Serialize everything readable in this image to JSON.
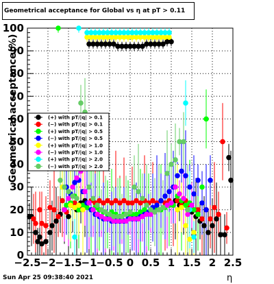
{
  "title_text": "Geometrical acceptance for Global vs  η at pT > 0.11",
  "footer_date": "Sun Apr 25 09:38:40 2021",
  "chart_data": {
    "type": "scatter",
    "title": "Geometrical acceptance for Global vs  η at pT > 0.11",
    "xlabel": "η",
    "ylabel": "Geometrical acceptance(%)",
    "xlim": [
      -2.5,
      2.5
    ],
    "ylim": [
      0,
      100
    ],
    "grid": true,
    "legend_position": "middle-left",
    "x_tick_labels": [
      "−2.5",
      "−2",
      "−1.5",
      "−1",
      "−0.5",
      "0",
      "0.5",
      "1",
      "1.5",
      "2",
      "2.5"
    ],
    "x_tick_values": [
      -2.5,
      -2,
      -1.5,
      -1,
      -0.5,
      0,
      0.5,
      1,
      1.5,
      2,
      2.5
    ],
    "y_tick_labels": [
      "0",
      "10",
      "20",
      "30",
      "40",
      "50",
      "60",
      "70",
      "80",
      "90",
      "100"
    ],
    "y_tick_values": [
      0,
      10,
      20,
      30,
      40,
      50,
      60,
      70,
      80,
      90,
      100
    ],
    "series": [
      {
        "name": "(+) with pT/|q| > 0.1",
        "color": "#000000",
        "points": [
          [
            -2.45,
            17
          ],
          [
            -2.4,
            17
          ],
          [
            -2.3,
            10
          ],
          [
            -2.25,
            6
          ],
          [
            -2.2,
            8
          ],
          [
            -2.15,
            5
          ],
          [
            -2.05,
            6
          ],
          [
            -1.95,
            10
          ],
          [
            -1.9,
            13
          ],
          [
            -1.8,
            15
          ],
          [
            -1.7,
            18
          ],
          [
            -1.6,
            20
          ],
          [
            -1.5,
            17
          ],
          [
            -1.4,
            22
          ],
          [
            -1.3,
            20
          ],
          [
            -1.2,
            23
          ],
          [
            -1.1,
            24
          ],
          [
            -1.0,
            93
          ],
          [
            -0.9,
            93
          ],
          [
            -0.8,
            93
          ],
          [
            -0.7,
            93
          ],
          [
            -0.6,
            93
          ],
          [
            -0.5,
            93
          ],
          [
            -0.4,
            93
          ],
          [
            -0.3,
            92
          ],
          [
            -0.2,
            92
          ],
          [
            -0.1,
            92
          ],
          [
            0.0,
            92
          ],
          [
            0.1,
            92
          ],
          [
            0.2,
            92
          ],
          [
            0.3,
            92
          ],
          [
            0.4,
            93
          ],
          [
            0.5,
            93
          ],
          [
            0.6,
            93
          ],
          [
            0.7,
            93
          ],
          [
            0.8,
            93
          ],
          [
            0.9,
            94
          ],
          [
            1.0,
            94
          ],
          [
            1.1,
            24
          ],
          [
            1.2,
            22
          ],
          [
            1.3,
            23
          ],
          [
            1.4,
            20
          ],
          [
            1.5,
            19
          ],
          [
            1.6,
            17
          ],
          [
            1.7,
            15
          ],
          [
            1.8,
            13
          ],
          [
            1.9,
            10
          ],
          [
            2.0,
            13
          ],
          [
            2.1,
            16
          ],
          [
            2.2,
            9
          ],
          [
            2.3,
            9
          ],
          [
            2.4,
            43
          ],
          [
            2.45,
            33
          ]
        ]
      },
      {
        "name": "(−) with pT/|q| > 0.1",
        "color": "#ff0000",
        "points": [
          [
            -2.35,
            16
          ],
          [
            -2.3,
            14
          ],
          [
            -2.2,
            20
          ],
          [
            -2.15,
            14
          ],
          [
            -2.05,
            13
          ],
          [
            -1.95,
            21
          ],
          [
            -1.85,
            20
          ],
          [
            -1.75,
            17
          ],
          [
            -1.65,
            24
          ],
          [
            -1.55,
            19
          ],
          [
            -1.45,
            22
          ],
          [
            -1.35,
            23
          ],
          [
            -1.25,
            21
          ],
          [
            -1.15,
            22
          ],
          [
            -1.05,
            23
          ],
          [
            -0.95,
            24
          ],
          [
            -0.85,
            23
          ],
          [
            -0.75,
            24
          ],
          [
            -0.65,
            23
          ],
          [
            -0.55,
            24
          ],
          [
            -0.45,
            23
          ],
          [
            -0.35,
            24
          ],
          [
            -0.25,
            23
          ],
          [
            -0.15,
            24
          ],
          [
            -0.05,
            23
          ],
          [
            0.05,
            23
          ],
          [
            0.15,
            24
          ],
          [
            0.25,
            23
          ],
          [
            0.35,
            24
          ],
          [
            0.45,
            23
          ],
          [
            0.55,
            24
          ],
          [
            0.65,
            23
          ],
          [
            0.75,
            24
          ],
          [
            0.85,
            23
          ],
          [
            0.95,
            24
          ],
          [
            1.05,
            22
          ],
          [
            1.15,
            24
          ],
          [
            1.25,
            22
          ],
          [
            1.35,
            24
          ],
          [
            1.45,
            21
          ],
          [
            1.55,
            20
          ],
          [
            1.65,
            20
          ],
          [
            1.75,
            16
          ],
          [
            1.85,
            20
          ],
          [
            1.95,
            16
          ],
          [
            2.05,
            21
          ],
          [
            2.15,
            18
          ],
          [
            2.25,
            50
          ],
          [
            2.35,
            12
          ]
        ]
      },
      {
        "name": "(+) with pT/|q| > 0.5",
        "color": "#00ff00",
        "points": [
          [
            -1.75,
            100
          ],
          [
            -1.65,
            30
          ],
          [
            -1.55,
            22
          ],
          [
            -1.45,
            23
          ],
          [
            -1.35,
            26
          ],
          [
            -1.25,
            20
          ],
          [
            -1.15,
            22
          ],
          [
            -1.05,
            21
          ],
          [
            -0.95,
            20
          ],
          [
            -0.85,
            21
          ],
          [
            -0.75,
            20
          ],
          [
            -0.65,
            19
          ],
          [
            -0.55,
            18
          ],
          [
            -0.45,
            19
          ],
          [
            -0.35,
            18
          ],
          [
            -0.25,
            17
          ],
          [
            -0.15,
            18
          ],
          [
            -0.05,
            17
          ],
          [
            0.05,
            18
          ],
          [
            0.15,
            18
          ],
          [
            0.25,
            19
          ],
          [
            0.35,
            20
          ],
          [
            0.45,
            19
          ],
          [
            0.55,
            20
          ],
          [
            0.65,
            21
          ],
          [
            0.75,
            20
          ],
          [
            0.85,
            21
          ],
          [
            0.95,
            22
          ],
          [
            1.05,
            22
          ],
          [
            1.15,
            26
          ],
          [
            1.25,
            24
          ],
          [
            1.35,
            22
          ],
          [
            1.45,
            23
          ],
          [
            1.55,
            20
          ],
          [
            1.65,
            18
          ],
          [
            1.75,
            30
          ],
          [
            1.85,
            60
          ]
        ]
      },
      {
        "name": "(−) with pT/|q| > 0.5",
        "color": "#0000ff",
        "points": [
          [
            -1.55,
            30
          ],
          [
            -1.45,
            27
          ],
          [
            -1.35,
            32
          ],
          [
            -1.25,
            33
          ],
          [
            -1.15,
            28
          ],
          [
            -1.05,
            23
          ],
          [
            -0.95,
            20
          ],
          [
            -0.85,
            18
          ],
          [
            -0.75,
            17
          ],
          [
            -0.65,
            16
          ],
          [
            -0.55,
            16
          ],
          [
            -0.45,
            15
          ],
          [
            -0.35,
            15
          ],
          [
            -0.25,
            15
          ],
          [
            -0.15,
            15
          ],
          [
            -0.05,
            16
          ],
          [
            0.05,
            16
          ],
          [
            0.15,
            16
          ],
          [
            0.25,
            17
          ],
          [
            0.35,
            18
          ],
          [
            0.45,
            19
          ],
          [
            0.55,
            21
          ],
          [
            0.65,
            22
          ],
          [
            0.75,
            24
          ],
          [
            0.85,
            26
          ],
          [
            0.95,
            28
          ],
          [
            1.05,
            30
          ],
          [
            1.15,
            35
          ],
          [
            1.25,
            37
          ],
          [
            1.35,
            35
          ],
          [
            1.45,
            30
          ],
          [
            1.55,
            27
          ],
          [
            1.65,
            33
          ],
          [
            1.75,
            23
          ],
          [
            1.85,
            20
          ],
          [
            1.95,
            33
          ]
        ]
      },
      {
        "name": "(+) with pT/|q| > 1.0",
        "color": "#ffff00",
        "points": [
          [
            -1.65,
            30
          ],
          [
            -1.45,
            22
          ],
          [
            -1.35,
            21
          ],
          [
            -1.25,
            22
          ],
          [
            -1.15,
            20
          ],
          [
            -1.05,
            96
          ],
          [
            -0.95,
            96
          ],
          [
            -0.85,
            96
          ],
          [
            -0.75,
            96
          ],
          [
            -0.65,
            96
          ],
          [
            -0.55,
            96
          ],
          [
            -0.45,
            96
          ],
          [
            -0.35,
            96
          ],
          [
            -0.25,
            96
          ],
          [
            -0.15,
            96
          ],
          [
            -0.05,
            96
          ],
          [
            0.05,
            96
          ],
          [
            0.15,
            96
          ],
          [
            0.25,
            96
          ],
          [
            0.35,
            96
          ],
          [
            0.45,
            96
          ],
          [
            0.55,
            96
          ],
          [
            0.65,
            96
          ],
          [
            0.75,
            96
          ],
          [
            0.85,
            96
          ],
          [
            0.95,
            96
          ],
          [
            1.15,
            20
          ],
          [
            1.25,
            21
          ],
          [
            1.35,
            13
          ],
          [
            1.45,
            7
          ],
          [
            1.55,
            10
          ]
        ]
      },
      {
        "name": "(−) with pT/|q| > 1.0",
        "color": "#ff00ff",
        "points": [
          [
            -1.6,
            20
          ],
          [
            -1.5,
            25
          ],
          [
            -1.4,
            30
          ],
          [
            -1.3,
            34
          ],
          [
            -1.2,
            37
          ],
          [
            -1.1,
            28
          ],
          [
            -1.0,
            23
          ],
          [
            -0.9,
            20
          ],
          [
            -0.8,
            18
          ],
          [
            -0.7,
            17
          ],
          [
            -0.6,
            16
          ],
          [
            -0.5,
            16
          ],
          [
            -0.4,
            15
          ],
          [
            -0.3,
            15
          ],
          [
            -0.2,
            15
          ],
          [
            -0.1,
            15
          ],
          [
            0.0,
            16
          ],
          [
            0.1,
            16
          ],
          [
            0.2,
            16
          ],
          [
            0.3,
            17
          ],
          [
            0.4,
            18
          ],
          [
            0.5,
            18
          ],
          [
            0.6,
            19
          ],
          [
            0.7,
            20
          ],
          [
            0.8,
            21
          ],
          [
            0.9,
            22
          ],
          [
            1.0,
            23
          ],
          [
            1.1,
            30
          ],
          [
            1.2,
            27
          ],
          [
            1.3,
            25
          ],
          [
            1.4,
            18
          ],
          [
            1.5,
            22
          ]
        ]
      },
      {
        "name": "(+) with pT/|q| > 2.0",
        "color": "#00ffff",
        "points": [
          [
            -1.25,
            100
          ],
          [
            -1.35,
            8
          ],
          [
            -1.05,
            98
          ],
          [
            -0.95,
            98
          ],
          [
            -0.85,
            98
          ],
          [
            -0.75,
            98
          ],
          [
            -0.65,
            98
          ],
          [
            -0.55,
            98
          ],
          [
            -0.45,
            98
          ],
          [
            -0.35,
            98
          ],
          [
            -0.25,
            98
          ],
          [
            -0.15,
            98
          ],
          [
            -0.05,
            98
          ],
          [
            0.05,
            98
          ],
          [
            0.15,
            98
          ],
          [
            0.25,
            98
          ],
          [
            0.35,
            98
          ],
          [
            0.45,
            98
          ],
          [
            0.55,
            98
          ],
          [
            0.65,
            98
          ],
          [
            0.75,
            98
          ],
          [
            0.85,
            98
          ],
          [
            0.95,
            98
          ],
          [
            1.35,
            67
          ],
          [
            1.45,
            20
          ],
          [
            1.55,
            8
          ]
        ]
      },
      {
        "name": "(−) with pT/|q| > 2.0",
        "color": "#66cc66",
        "points": [
          [
            -1.7,
            33
          ],
          [
            -1.6,
            30
          ],
          [
            -1.5,
            28
          ],
          [
            -1.4,
            26
          ],
          [
            -1.3,
            25
          ],
          [
            -1.2,
            67
          ],
          [
            -1.1,
            63
          ],
          [
            -1.0,
            30
          ],
          [
            -0.9,
            25
          ],
          [
            -0.8,
            22
          ],
          [
            -0.7,
            20
          ],
          [
            -0.6,
            19
          ],
          [
            -0.5,
            18
          ],
          [
            -0.4,
            17
          ],
          [
            -0.3,
            17
          ],
          [
            -0.2,
            17
          ],
          [
            -0.1,
            18
          ],
          [
            0.0,
            19
          ],
          [
            0.1,
            30
          ],
          [
            0.2,
            28
          ],
          [
            0.3,
            25
          ],
          [
            0.4,
            22
          ],
          [
            0.5,
            20
          ],
          [
            0.6,
            19
          ],
          [
            0.7,
            20
          ],
          [
            0.8,
            21
          ],
          [
            0.9,
            36
          ],
          [
            1.0,
            40
          ],
          [
            1.1,
            42
          ],
          [
            1.2,
            50
          ],
          [
            1.3,
            50
          ],
          [
            1.4,
            20
          ]
        ]
      }
    ]
  }
}
